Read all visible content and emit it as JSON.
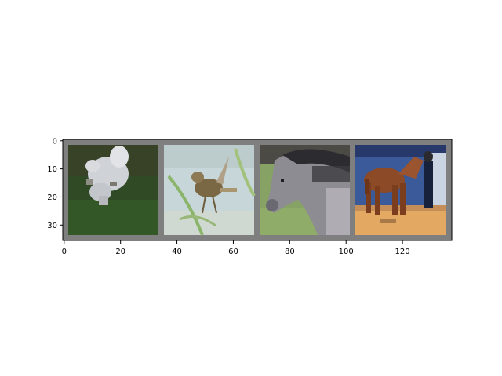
{
  "figure": {
    "background": "#ffffff",
    "grid_background": "#7f7f7f",
    "pixel_grid": {
      "width": 138,
      "height": 36
    }
  },
  "axes": {
    "x": {
      "range": [
        -0.5,
        137.5
      ],
      "ticks": [
        0,
        20,
        40,
        60,
        80,
        100,
        120
      ]
    },
    "y": {
      "range": [
        35.5,
        -0.5
      ],
      "ticks": [
        0,
        10,
        20,
        30
      ],
      "inverted": true
    }
  },
  "images": [
    {
      "name": "dog",
      "description_colors": {
        "background": "#2f4a24",
        "subject": "#d8dbe0",
        "accent": "#6b6a5e"
      }
    },
    {
      "name": "bird",
      "description_colors": {
        "background": "#c7d6d8",
        "subject": "#7a6744",
        "accent": "#8bb56a"
      }
    },
    {
      "name": "horse-gray",
      "description_colors": {
        "background": "#87a265",
        "subject": "#8e8c93",
        "accent": "#2b2b30"
      }
    },
    {
      "name": "horse-brown",
      "description_colors": {
        "background": "#3a5a9a",
        "subject": "#8c4a26",
        "accent": "#e3a862"
      }
    }
  ]
}
